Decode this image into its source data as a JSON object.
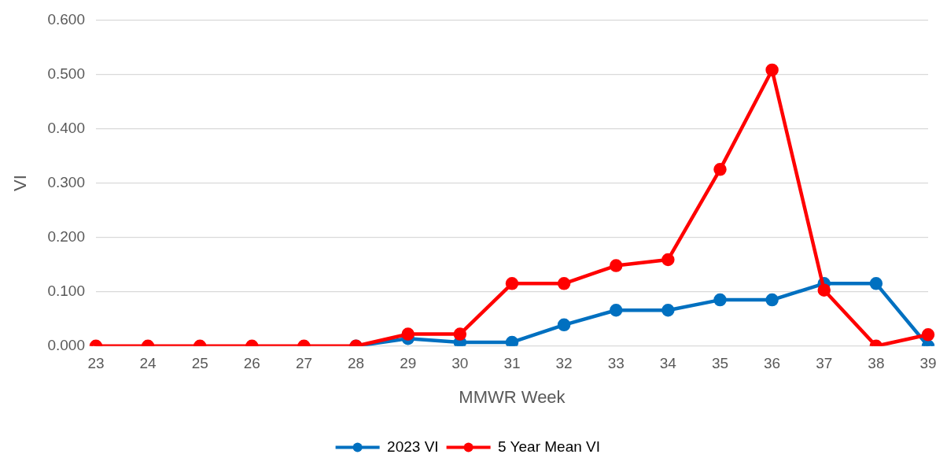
{
  "chart_data": {
    "type": "line",
    "xlabel": "MMWR Week",
    "ylabel": "VI",
    "categories": [
      "23",
      "24",
      "25",
      "26",
      "27",
      "28",
      "29",
      "30",
      "31",
      "32",
      "33",
      "34",
      "35",
      "36",
      "37",
      "38",
      "39"
    ],
    "series": [
      {
        "name": "2023 VI",
        "color": "#0070c0",
        "values": [
          null,
          null,
          null,
          null,
          null,
          0,
          0.014,
          0.007,
          0.007,
          0.039,
          0.066,
          0.066,
          0.085,
          0.085,
          0.115,
          0.115,
          0
        ]
      },
      {
        "name": "5 Year Mean VI",
        "color": "#ff0000",
        "values": [
          0,
          0,
          0,
          0,
          0,
          0,
          0.022,
          0.022,
          0.115,
          0.115,
          0.148,
          0.159,
          0.325,
          0.508,
          0.103,
          0,
          0.021
        ]
      }
    ],
    "ylim": [
      0,
      0.6
    ],
    "yticks": [
      {
        "value": 0,
        "label": "0.000"
      },
      {
        "value": 0.1,
        "label": "0.100"
      },
      {
        "value": 0.2,
        "label": "0.200"
      },
      {
        "value": 0.3,
        "label": "0.300"
      },
      {
        "value": 0.4,
        "label": "0.400"
      },
      {
        "value": 0.5,
        "label": "0.500"
      },
      {
        "value": 0.6,
        "label": "0.600"
      }
    ],
    "grid": "y",
    "legend": "bottom",
    "marker": "circle",
    "line_style": "solid"
  }
}
